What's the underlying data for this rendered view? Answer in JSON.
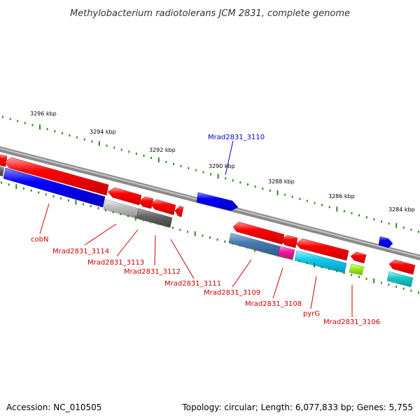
{
  "title": "Methylobacterium radiotolerans JCM 2831, complete genome",
  "footer": {
    "accession": "Accession: NC_010505",
    "summary": "Topology: circular; Length: 6,077,833 bp; Genes: 5,755"
  },
  "scale": {
    "ticks": [
      "3296 kbp",
      "3294 kbp",
      "3292 kbp",
      "3290 kbp",
      "3288 kbp",
      "3286 kbp",
      "3284 kbp"
    ]
  },
  "genes": {
    "upper": [
      "Mrad2831_3110"
    ],
    "lower": [
      "cobN",
      "Mrad2831_3114",
      "Mrad2831_3113",
      "Mrad2831_3112",
      "Mrad2831_3111",
      "Mrad2831_3109",
      "Mrad2831_3108",
      "pyrG",
      "Mrad2831_3106"
    ]
  },
  "colors": {
    "label_upper": "#0000cc",
    "label_lower": "#cc0000",
    "backbone": "#888888",
    "tick": "#2e8b22",
    "red": "#ff0000",
    "blue": "#0000ff",
    "steel": "#4a7ab0",
    "magenta": "#ee1aa0",
    "cyan": "#12c8ee",
    "lime": "#a0ee20",
    "teal": "#18c8c8",
    "light_gray": "#bdbdbd",
    "dark_gray": "#666666"
  }
}
